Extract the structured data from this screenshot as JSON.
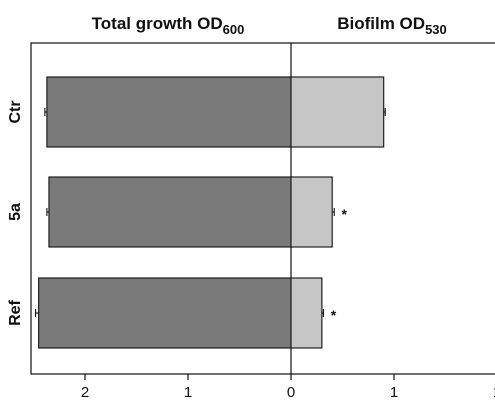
{
  "chart_data": {
    "type": "bar",
    "orientation": "horizontal",
    "categories": [
      "Ctr",
      "5a",
      "Ref"
    ],
    "panels": [
      {
        "title_main": "Total growth OD",
        "title_sub": "600",
        "values": [
          2.37,
          2.35,
          2.45
        ],
        "errors": [
          0.02,
          0.02,
          0.03
        ],
        "color": "#7a7a7a",
        "direction": "left",
        "significance": [
          "",
          "",
          ""
        ]
      },
      {
        "title_main": "Biofilm OD",
        "title_sub": "530",
        "values": [
          0.9,
          0.4,
          0.3
        ],
        "errors": [
          0.015,
          0.02,
          0.015
        ],
        "color": "#c6c6c6",
        "direction": "right",
        "significance": [
          "",
          "*",
          "*"
        ]
      }
    ],
    "x_ticks": [
      {
        "label": "2",
        "value": -2
      },
      {
        "label": "1",
        "value": -1
      },
      {
        "label": "0",
        "value": 0
      },
      {
        "label": "1",
        "value": 1
      },
      {
        "label": "1",
        "value": 2
      }
    ],
    "xlim": [
      -2.5,
      1.95
    ],
    "grid": false,
    "legend": "none"
  }
}
